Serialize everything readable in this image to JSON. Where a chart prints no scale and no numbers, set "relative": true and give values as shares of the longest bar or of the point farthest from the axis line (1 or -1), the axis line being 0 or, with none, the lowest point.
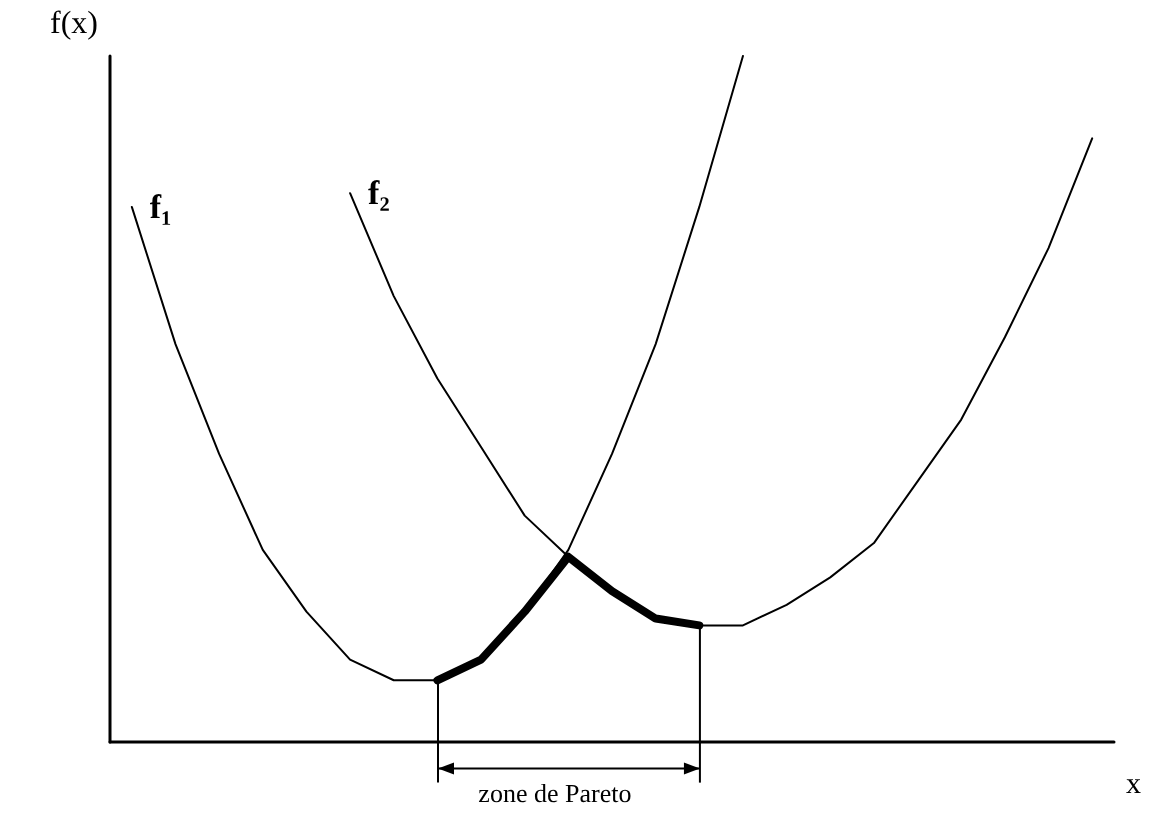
{
  "chart_data": {
    "type": "line",
    "relative": true,
    "xlabel": "x",
    "ylabel": "f(x)",
    "categories": [
      null,
      null,
      null,
      null,
      null,
      null,
      null,
      null,
      null,
      null,
      null,
      null,
      null,
      null,
      null,
      null,
      null,
      null,
      null,
      null,
      null,
      null,
      null
    ],
    "series": [
      {
        "name": "f₁",
        "color": "#000000",
        "values": [
          0.78,
          0.58,
          0.42,
          0.28,
          0.19,
          0.12,
          0.09,
          0.09,
          0.12,
          0.19,
          0.28,
          0.42,
          0.58,
          0.78,
          1,
          null,
          null,
          null,
          null,
          null,
          null,
          null,
          null
        ]
      },
      {
        "name": "f₂",
        "color": "#000000",
        "values": [
          null,
          null,
          null,
          null,
          null,
          0.8,
          0.65,
          0.53,
          0.43,
          0.33,
          0.27,
          0.22,
          0.18,
          0.17,
          0.17,
          0.2,
          0.24,
          0.29,
          0.38,
          0.47,
          0.59,
          0.72,
          0.88
        ]
      },
      {
        "color": "#000000",
        "values": [
          null,
          null,
          null,
          null,
          null,
          null,
          null,
          0.09,
          0.12,
          0.19,
          0.27,
          0.22,
          0.18,
          0.17,
          null,
          null,
          null,
          null,
          null,
          null,
          null,
          null,
          null
        ]
      }
    ],
    "annotations": [
      "zone de Pareto"
    ],
    "legend": false,
    "grid": false,
    "marker": "none"
  }
}
